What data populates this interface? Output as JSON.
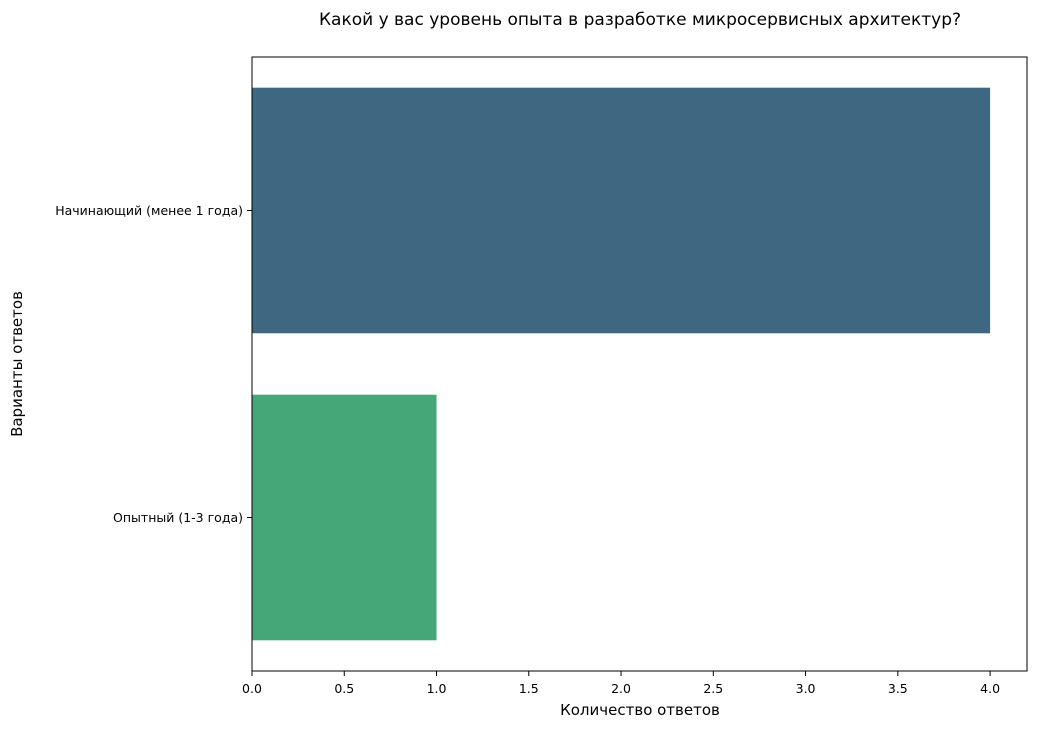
{
  "chart_data": {
    "type": "bar",
    "orientation": "horizontal",
    "title": "Какой у вас уровень опыта в разработке микросервисных архитектур?",
    "xlabel": "Количество ответов",
    "ylabel": "Варианты ответов",
    "categories": [
      "Начинающий (менее 1 года)",
      "Опытный (1-3 года)"
    ],
    "values": [
      4,
      1
    ],
    "colors": [
      "#3e6782",
      "#45a778"
    ],
    "xlim": [
      0,
      4.2
    ],
    "xticks": [
      0,
      0.5,
      1,
      1.5,
      2,
      2.5,
      3,
      3.5,
      4
    ],
    "xtick_labels": [
      "0.0",
      "0.5",
      "1.0",
      "1.5",
      "2.0",
      "2.5",
      "3.0",
      "3.5",
      "4.0"
    ],
    "grid": false,
    "legend": "none"
  }
}
